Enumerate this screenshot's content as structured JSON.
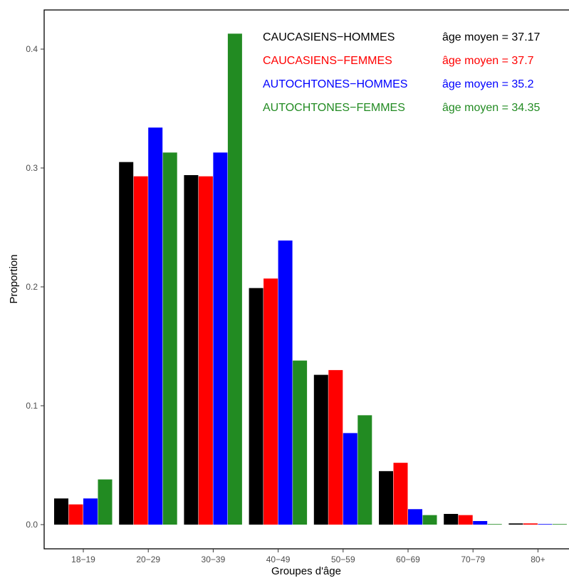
{
  "chart_data": {
    "type": "bar",
    "xlabel": "Groupes d'âge",
    "ylabel": "Proportion",
    "ylim": [
      0,
      0.44
    ],
    "yticks": [
      "0.0",
      "0.1",
      "0.2",
      "0.3",
      "0.4"
    ],
    "categories": [
      "18−19",
      "20−29",
      "30−39",
      "40−49",
      "50−59",
      "60−69",
      "70−79",
      "80+"
    ],
    "grid": false,
    "legend_position": "top-right",
    "series": [
      {
        "name": "CAUCASIENS−HOMMES",
        "mean_label": "âge moyen = 37.17",
        "color": "#000000",
        "values": [
          0.022,
          0.305,
          0.294,
          0.199,
          0.126,
          0.045,
          0.009,
          0.001
        ]
      },
      {
        "name": "CAUCASIENS−FEMMES",
        "mean_label": "âge moyen = 37.7",
        "color": "#ff0000",
        "values": [
          0.017,
          0.293,
          0.293,
          0.207,
          0.13,
          0.052,
          0.008,
          0.001
        ]
      },
      {
        "name": "AUTOCHTONES−HOMMES",
        "mean_label": "âge moyen = 35.2",
        "color": "#0000ff",
        "values": [
          0.022,
          0.334,
          0.313,
          0.239,
          0.077,
          0.013,
          0.003,
          0.0
        ]
      },
      {
        "name": "AUTOCHTONES−FEMMES",
        "mean_label": "âge moyen = 34.35",
        "color": "#228b22",
        "values": [
          0.038,
          0.313,
          0.413,
          0.138,
          0.092,
          0.008,
          0.0,
          0.0
        ]
      }
    ]
  }
}
